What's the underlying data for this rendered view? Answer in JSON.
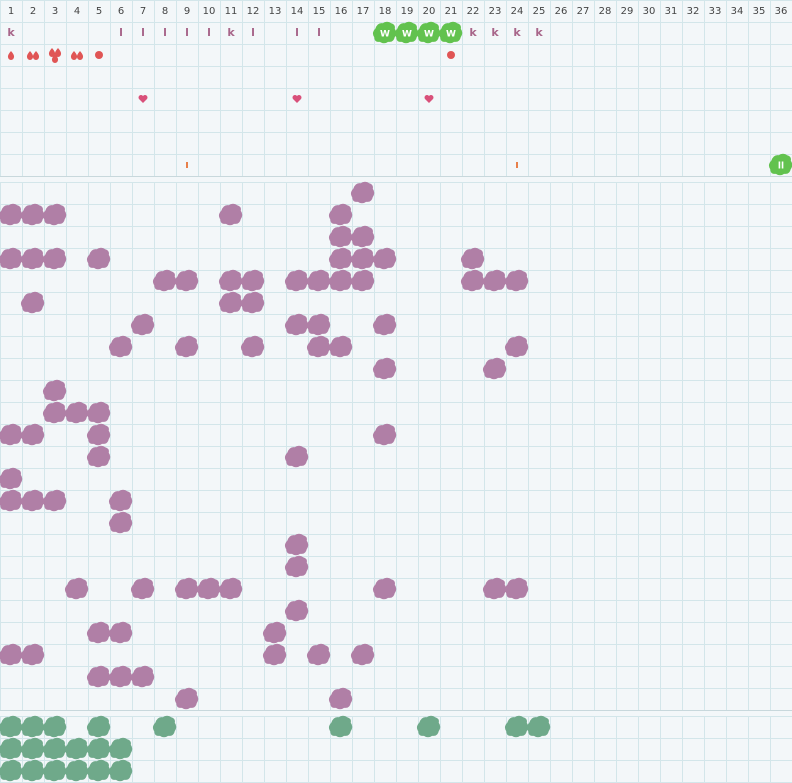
{
  "columns": [
    1,
    2,
    3,
    4,
    5,
    6,
    7,
    8,
    9,
    10,
    11,
    12,
    13,
    14,
    15,
    16,
    17,
    18,
    19,
    20,
    21,
    22,
    23,
    24,
    25,
    26,
    27,
    28,
    29,
    30,
    31,
    32,
    33,
    34,
    35,
    36
  ],
  "top_rows": [
    [
      {
        "col": 1,
        "text": "k"
      },
      {
        "col": 6,
        "text": "l"
      },
      {
        "col": 7,
        "text": "l"
      },
      {
        "col": 8,
        "text": "l"
      },
      {
        "col": 9,
        "text": "l"
      },
      {
        "col": 10,
        "text": "l"
      },
      {
        "col": 11,
        "text": "k"
      },
      {
        "col": 12,
        "text": "l"
      },
      {
        "col": 14,
        "text": "l"
      },
      {
        "col": 15,
        "text": "l"
      },
      {
        "col": 18,
        "text": "W",
        "icon": "blob"
      },
      {
        "col": 19,
        "text": "W",
        "icon": "blob"
      },
      {
        "col": 20,
        "text": "W",
        "icon": "blob"
      },
      {
        "col": 21,
        "text": "W",
        "icon": "blob"
      },
      {
        "col": 22,
        "text": "k"
      },
      {
        "col": 23,
        "text": "k"
      },
      {
        "col": 24,
        "text": "k"
      },
      {
        "col": 25,
        "text": "k"
      }
    ],
    [
      {
        "col": 1,
        "icon": "drop",
        "count": 1
      },
      {
        "col": 2,
        "icon": "drop",
        "count": 2
      },
      {
        "col": 3,
        "icon": "drop",
        "count": 3
      },
      {
        "col": 4,
        "icon": "drop",
        "count": 2
      },
      {
        "col": 5,
        "icon": "dot"
      },
      {
        "col": 21,
        "icon": "dot"
      }
    ],
    [],
    [
      {
        "col": 7,
        "icon": "heart"
      },
      {
        "col": 14,
        "icon": "heart"
      },
      {
        "col": 20,
        "icon": "heart"
      }
    ],
    [],
    [],
    [
      {
        "col": 9,
        "icon": "tick"
      },
      {
        "col": 24,
        "icon": "tick"
      },
      {
        "col": 36,
        "text": "ll",
        "icon": "blob"
      }
    ]
  ],
  "purple_rows": [
    [
      17
    ],
    [
      1,
      2,
      3,
      11,
      16
    ],
    [
      16,
      17
    ],
    [
      1,
      2,
      3,
      5,
      16,
      17,
      18,
      22
    ],
    [
      8,
      9,
      11,
      12,
      14,
      15,
      16,
      17,
      22,
      23,
      24
    ],
    [
      2,
      11,
      12
    ],
    [
      7,
      14,
      15,
      18
    ],
    [
      6,
      9,
      12,
      15,
      16,
      24
    ],
    [
      18,
      23
    ],
    [
      3
    ],
    [
      3,
      4,
      5
    ],
    [
      1,
      2,
      5,
      18
    ],
    [
      5,
      14
    ],
    [
      1
    ],
    [
      1,
      2,
      3,
      6
    ],
    [
      6
    ],
    [
      14
    ],
    [
      14
    ],
    [
      4,
      7,
      9,
      10,
      11,
      18,
      23,
      24
    ],
    [
      14
    ],
    [
      5,
      6,
      13
    ],
    [
      1,
      2,
      13,
      15,
      17
    ],
    [
      5,
      6,
      7
    ],
    [
      9,
      16
    ]
  ],
  "green_rows": [
    [
      1,
      2,
      3,
      5,
      8,
      16,
      20,
      24,
      25
    ],
    [
      1,
      2,
      3,
      4,
      5,
      6
    ],
    [
      1,
      2,
      3,
      4,
      5,
      6
    ]
  ]
}
